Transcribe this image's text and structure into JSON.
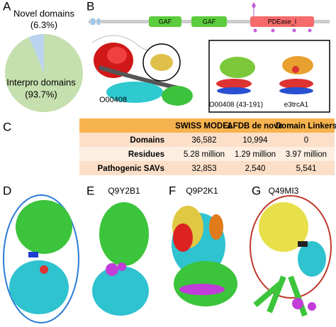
{
  "panel_labels": [
    "A",
    "B",
    "C",
    "D",
    "E",
    "F",
    "G"
  ],
  "chart_data": {
    "type": "pie",
    "categories": [
      "Novel domains",
      "Interpro domains"
    ],
    "values": [
      6.3,
      93.7
    ],
    "value_labels": [
      "(6.3%)",
      "(93.7%)"
    ],
    "colors": [
      "#b9d3ee",
      "#c6dfae"
    ]
  },
  "domain_map": {
    "domains": [
      "GAF",
      "GAF",
      "PDEase_I"
    ]
  },
  "structure_labels": {
    "full": "O00408",
    "inset_left": "O00408 (43-191)",
    "inset_right": "e3trcA1"
  },
  "table": {
    "columns": [
      "SWISS MODEL",
      "AFDB de novo",
      "Domain Linkers"
    ],
    "rows": [
      [
        "Domains",
        "36,582",
        "10,994",
        "0"
      ],
      [
        "Residues",
        "5.28 million",
        "1.29 million",
        "3.97 million"
      ],
      [
        "Pathogenic SAVs",
        "32,853",
        "2,540",
        "5,541"
      ]
    ]
  },
  "protein_ids": [
    "Q9Y2B1",
    "Q9P2K1",
    "Q49MI3"
  ]
}
